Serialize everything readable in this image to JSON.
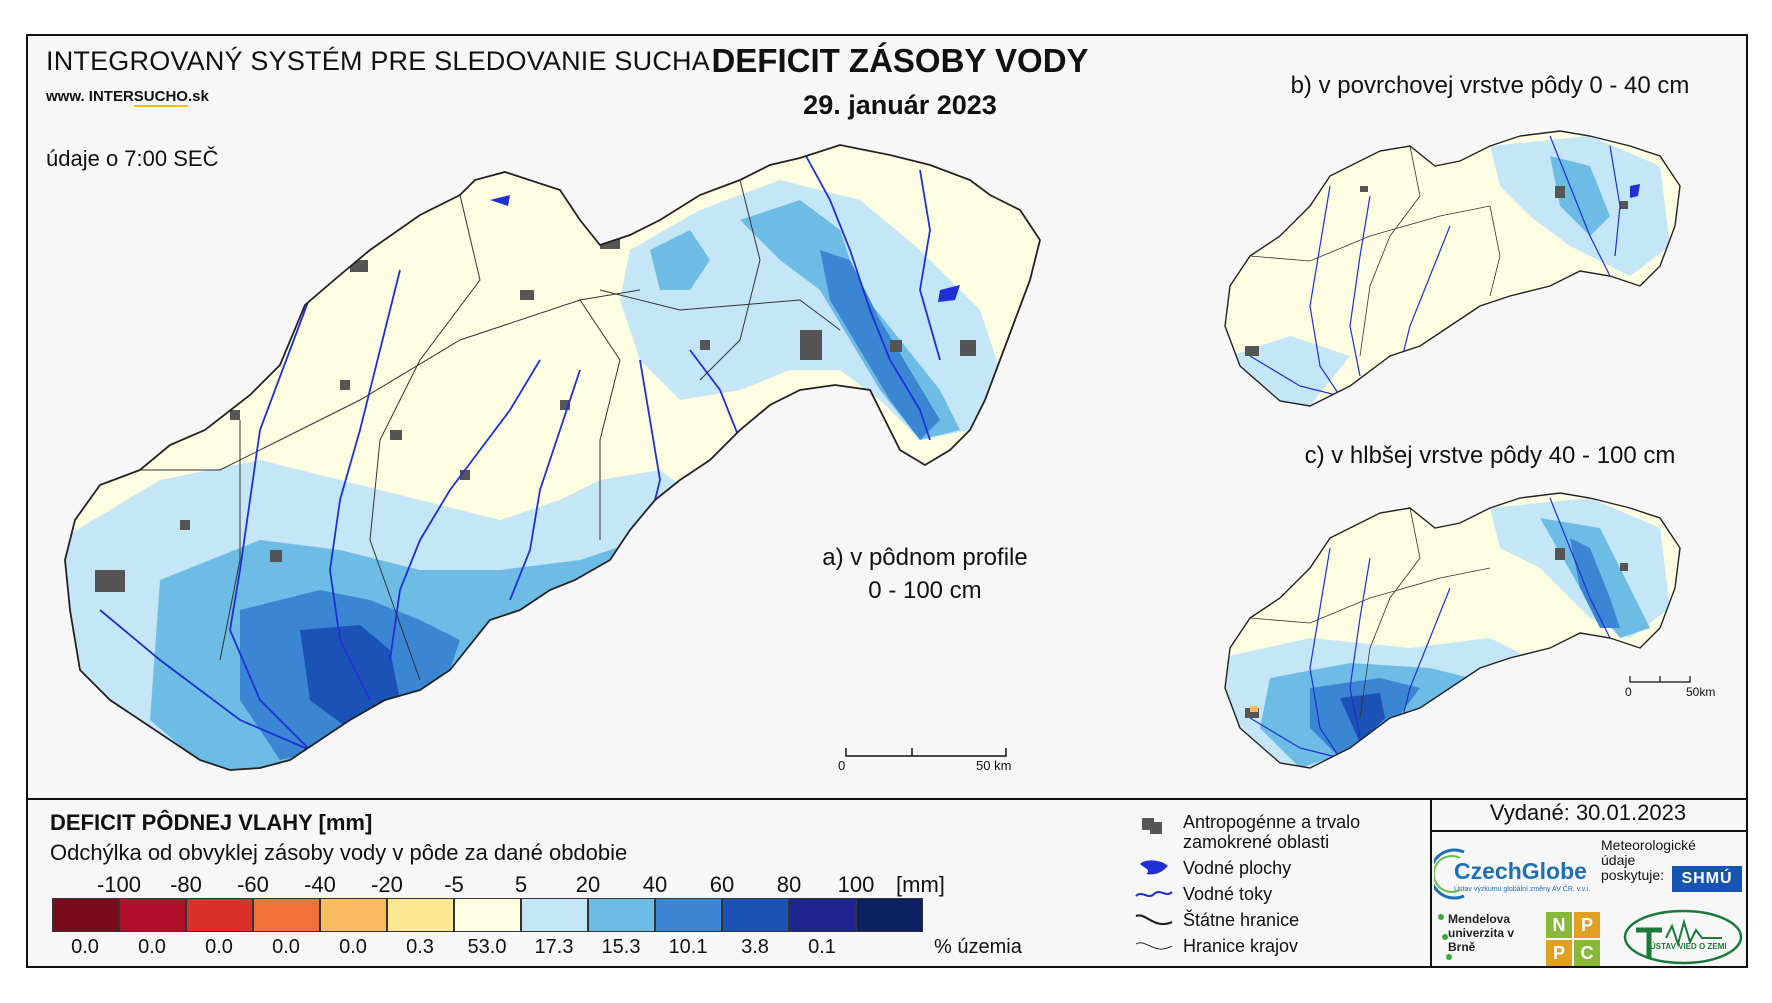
{
  "header": {
    "system_name": "INTEGROVANÝ SYSTÉM PRE SLEDOVANIE SUCHA",
    "website_prefix": "www. INTER",
    "website_highlight": "SUCHO",
    "website_suffix": ".sk",
    "measurement_time": "údaje o 7:00 SEČ",
    "title": "DEFICIT ZÁSOBY VODY",
    "date": "29. január 2023"
  },
  "maps": {
    "a_label_line1": "a) v pôdnom profile",
    "a_label_line2": "0 - 100 cm",
    "b_label": "b) v povrchovej vrstve pôdy 0 - 40 cm",
    "c_label": "c) v hlbšej vrstve pôdy 40 - 100 cm",
    "scale_main": {
      "start": "0",
      "end": "50 km"
    },
    "scale_small": {
      "start": "0",
      "end": "50km"
    }
  },
  "legend": {
    "title": "DEFICIT PÔDNEJ VLAHY [mm]",
    "subtitle": "Odchýlka od obvyklej zásoby vody v pôde za dané obdobie",
    "unit": "[mm]",
    "ticks": [
      "-100",
      "-80",
      "-60",
      "-40",
      "-20",
      "-5",
      "5",
      "20",
      "40",
      "60",
      "80",
      "100"
    ],
    "classes": [
      {
        "color": "#7a0a1e",
        "percent": "0.0"
      },
      {
        "color": "#b0102a",
        "percent": "0.0"
      },
      {
        "color": "#d9302a",
        "percent": "0.0"
      },
      {
        "color": "#f2703c",
        "percent": "0.0"
      },
      {
        "color": "#f9bb5e",
        "percent": "0.0"
      },
      {
        "color": "#fbe792",
        "percent": "0.3"
      },
      {
        "color": "#fdfde2",
        "percent": "53.0"
      },
      {
        "color": "#c4e6f6",
        "percent": "17.3"
      },
      {
        "color": "#6cbce6",
        "percent": "15.3"
      },
      {
        "color": "#3a86d2",
        "percent": "10.1"
      },
      {
        "color": "#1a52b6",
        "percent": "3.8"
      },
      {
        "color": "#1e2590",
        "percent": "0.1"
      },
      {
        "color": "#0a2060",
        "percent": ""
      }
    ],
    "percent_unit": "% územia",
    "symbols": [
      {
        "icon": "urban-area-icon",
        "label": "Antropogénne a trvalo zamokrené oblasti"
      },
      {
        "icon": "water-body-icon",
        "label": "Vodné plochy"
      },
      {
        "icon": "river-icon",
        "label": "Vodné toky"
      },
      {
        "icon": "state-border-icon",
        "label": "Štátne hranice"
      },
      {
        "icon": "region-border-icon",
        "label": "Hranice krajov"
      }
    ]
  },
  "credits": {
    "issued": "Vydané: 30.01.2023",
    "czechglobe": "CzechGlobe",
    "czechglobe_sub": "Ústav výzkumu globální změny AV ČR, v.v.i.",
    "shmu_text": "Meteorologické údaje poskytuje:",
    "shmu_logo": "SHMÚ",
    "mendel": "Mendelova univerzita v Brně",
    "nppc_letters": [
      "N",
      "P",
      "P",
      "C"
    ],
    "uvz": "ÚSTAV VIED O ZEMI"
  },
  "colors": {
    "no_deficit": "#fdfde2",
    "light_blue": "#c4e6f6",
    "medium_blue": "#6cbce6",
    "blue": "#3a86d2",
    "dark_blue": "#1a52b6",
    "river": "#1f2fd6",
    "urban": "#555555"
  }
}
